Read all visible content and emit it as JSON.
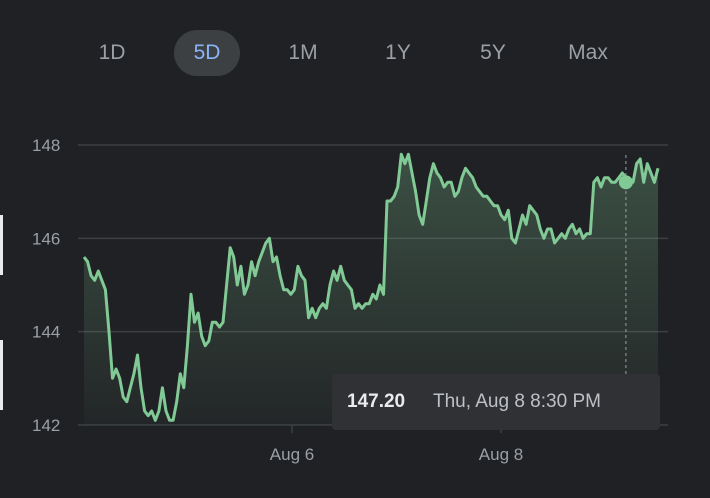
{
  "range_tabs": [
    {
      "label": "1D",
      "active": false
    },
    {
      "label": "5D",
      "active": true
    },
    {
      "label": "1M",
      "active": false
    },
    {
      "label": "1Y",
      "active": false
    },
    {
      "label": "5Y",
      "active": false
    },
    {
      "label": "Max",
      "active": false
    }
  ],
  "colors": {
    "background": "#202124",
    "line": "#81c995",
    "grid": "#3c4043",
    "tab_active_text": "#8ab4f8"
  },
  "tooltip": {
    "price": "147.20",
    "datetime": "Thu, Aug 8 8:30 PM"
  },
  "chart_data": {
    "type": "area",
    "x_ticks": [
      "Aug 6",
      "Aug 8"
    ],
    "y_ticks": [
      142,
      144,
      146,
      148
    ],
    "ylim": [
      142,
      148
    ],
    "grid": true,
    "hovered_point": {
      "value": 147.2,
      "label": "Thu, Aug 8 8:30 PM"
    },
    "values": [
      145.6,
      145.5,
      145.2,
      145.1,
      145.3,
      145.1,
      144.9,
      144.0,
      143.0,
      143.2,
      143.0,
      142.6,
      142.5,
      142.8,
      143.1,
      143.5,
      142.8,
      142.3,
      142.2,
      142.3,
      142.1,
      142.3,
      142.8,
      142.3,
      142.1,
      142.1,
      142.5,
      143.1,
      142.8,
      143.7,
      144.8,
      144.2,
      144.4,
      143.9,
      143.7,
      143.8,
      144.2,
      144.2,
      144.1,
      144.2,
      145.0,
      145.8,
      145.6,
      145.0,
      145.4,
      144.8,
      145.0,
      145.5,
      145.2,
      145.5,
      145.7,
      145.9,
      146.0,
      145.5,
      145.6,
      145.2,
      144.9,
      144.9,
      144.8,
      144.9,
      145.4,
      145.2,
      145.1,
      144.3,
      144.5,
      144.3,
      144.5,
      144.6,
      144.5,
      145.0,
      145.3,
      145.1,
      145.4,
      145.1,
      145.0,
      144.9,
      144.5,
      144.6,
      144.5,
      144.6,
      144.6,
      144.8,
      144.7,
      145.0,
      144.8,
      146.8,
      146.8,
      146.9,
      147.1,
      147.8,
      147.6,
      147.8,
      147.4,
      147.0,
      146.5,
      146.3,
      146.8,
      147.3,
      147.6,
      147.4,
      147.3,
      147.1,
      147.2,
      147.2,
      146.9,
      147.0,
      147.3,
      147.5,
      147.4,
      147.3,
      147.1,
      147.0,
      146.9,
      146.9,
      146.8,
      146.7,
      146.7,
      146.5,
      146.4,
      146.6,
      146.0,
      145.9,
      146.2,
      146.5,
      146.3,
      146.7,
      146.6,
      146.5,
      146.2,
      146.0,
      146.2,
      146.2,
      145.9,
      146.0,
      146.1,
      146.0,
      146.2,
      146.3,
      146.1,
      146.2,
      146.0,
      146.1,
      146.1,
      147.2,
      147.3,
      147.1,
      147.3,
      147.3,
      147.2,
      147.2,
      147.3,
      147.4,
      147.3,
      147.2,
      147.2,
      147.6,
      147.7,
      147.2,
      147.6,
      147.4,
      147.2,
      147.5
    ]
  }
}
